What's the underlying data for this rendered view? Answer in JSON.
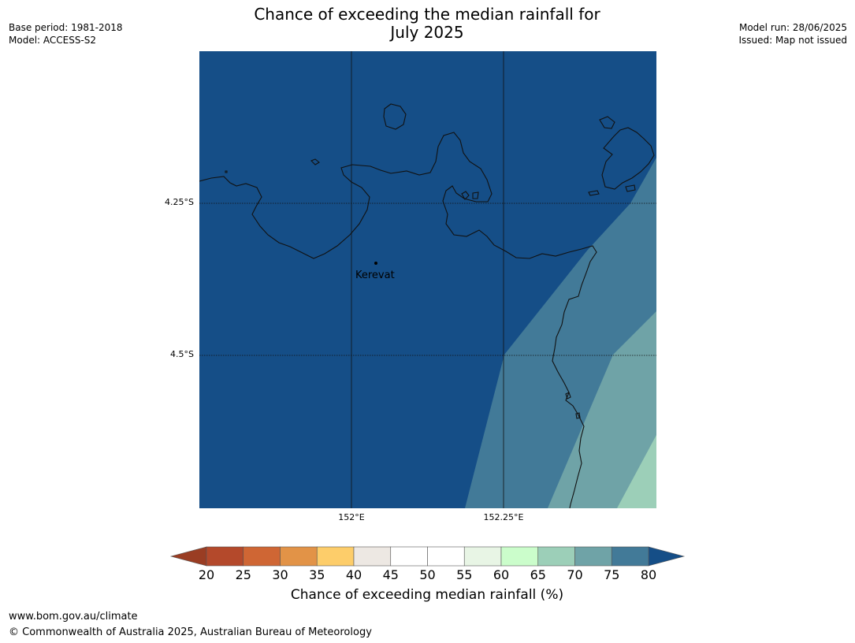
{
  "title": {
    "line1": "Chance of exceeding the median rainfall for",
    "line2": "July 2025"
  },
  "meta_left": {
    "base_period": "Base period: 1981-2018",
    "model": "Model: ACCESS-S2"
  },
  "meta_right": {
    "model_run": "Model run: 28/06/2025",
    "issued": "Issued: Map not issued"
  },
  "map": {
    "lat_labels": [
      "4.25°S",
      "4.5°S"
    ],
    "lon_labels": [
      "152°E",
      "152.25°E"
    ],
    "place": "Kerevat",
    "regions": [
      {
        "range": "> 80",
        "color": "#154e87"
      },
      {
        "range": "75–80",
        "color": "#427a98"
      },
      {
        "range": "70–75",
        "color": "#6fa3a7"
      },
      {
        "range": "65–70",
        "color": "#9ccfb8"
      }
    ]
  },
  "colorbar": {
    "title": "Chance of exceeding median rainfall (%)",
    "ticks": [
      "20",
      "25",
      "30",
      "35",
      "40",
      "45",
      "50",
      "55",
      "60",
      "65",
      "70",
      "75",
      "80"
    ],
    "under_color": "#9a3d23",
    "over_color": "#154e87",
    "colors": [
      "#b4492b",
      "#cf6634",
      "#e29347",
      "#fdcd6a",
      "#ede8e3",
      "#ffffff",
      "#ffffff",
      "#e8f5e5",
      "#cbfdcb",
      "#9ccfb8",
      "#6fa3a7",
      "#427a98"
    ]
  },
  "footer": {
    "url": "www.bom.gov.au/climate",
    "copyright": "© Commonwealth of Australia 2025, Australian Bureau of Meteorology"
  }
}
